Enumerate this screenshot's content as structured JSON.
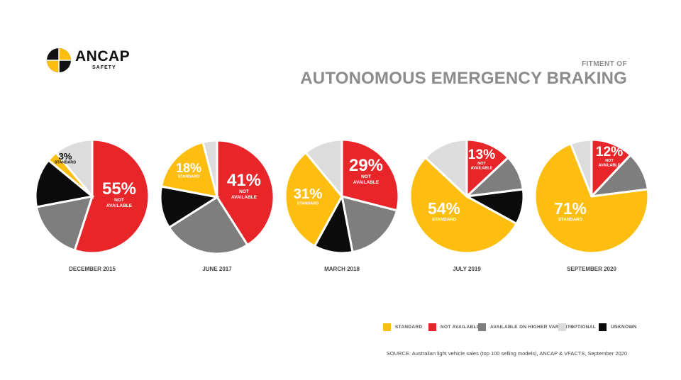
{
  "brand": {
    "name": "ANCAP",
    "sub": "SAFETY"
  },
  "header": {
    "subtitle": "FITMENT OF",
    "title": "AUTONOMOUS EMERGENCY BRAKING"
  },
  "colors": {
    "standard": "#FDBE0F",
    "not_available": "#E8262A",
    "higher_variants": "#7E7E7E",
    "optional": "#DCDCDC",
    "unknown": "#0B0B0B"
  },
  "legend": [
    {
      "key": "standard",
      "label": "STANDARD"
    },
    {
      "key": "not_available",
      "label": "NOT AVAILABLE"
    },
    {
      "key": "higher_variants",
      "label": "AVAILABLE ON HIGHER VARIANTS"
    },
    {
      "key": "optional",
      "label": "OPTIONAL"
    },
    {
      "key": "unknown",
      "label": "UNKNOWN"
    }
  ],
  "chart_data": [
    {
      "type": "pie",
      "title": "DECEMBER 2015",
      "slices": [
        {
          "key": "not_available",
          "value": 55,
          "label": "55%",
          "sublabel": "NOT AVAILABLE"
        },
        {
          "key": "higher_variants",
          "value": 17
        },
        {
          "key": "unknown",
          "value": 14
        },
        {
          "key": "standard",
          "value": 3,
          "label": "3%",
          "sublabel": "STANDARD"
        },
        {
          "key": "optional",
          "value": 11
        }
      ]
    },
    {
      "type": "pie",
      "title": "JUNE 2017",
      "slices": [
        {
          "key": "not_available",
          "value": 41,
          "label": "41%",
          "sublabel": "NOT AVAILABLE"
        },
        {
          "key": "higher_variants",
          "value": 25
        },
        {
          "key": "unknown",
          "value": 12
        },
        {
          "key": "standard",
          "value": 18,
          "label": "18%",
          "sublabel": "STANDARD"
        },
        {
          "key": "optional",
          "value": 4
        }
      ]
    },
    {
      "type": "pie",
      "title": "MARCH 2018",
      "slices": [
        {
          "key": "not_available",
          "value": 29,
          "label": "29%",
          "sublabel": "NOT AVAILABLE"
        },
        {
          "key": "higher_variants",
          "value": 18
        },
        {
          "key": "unknown",
          "value": 11
        },
        {
          "key": "standard",
          "value": 31,
          "label": "31%",
          "sublabel": "STANDARD"
        },
        {
          "key": "optional",
          "value": 11
        }
      ]
    },
    {
      "type": "pie",
      "title": "JULY 2019",
      "slices": [
        {
          "key": "not_available",
          "value": 13,
          "label": "13%",
          "sublabel": "NOT AVAILABLE"
        },
        {
          "key": "higher_variants",
          "value": 10
        },
        {
          "key": "unknown",
          "value": 10
        },
        {
          "key": "standard",
          "value": 54,
          "label": "54%",
          "sublabel": "STANDARD"
        },
        {
          "key": "optional",
          "value": 13
        }
      ]
    },
    {
      "type": "pie",
      "title": "SEPTEMBER 2020",
      "slices": [
        {
          "key": "not_available",
          "value": 12,
          "label": "12%",
          "sublabel": "NOT AVAILABLE"
        },
        {
          "key": "higher_variants",
          "value": 11
        },
        {
          "key": "standard",
          "value": 71,
          "label": "71%",
          "sublabel": "STANDARD"
        },
        {
          "key": "optional",
          "value": 6
        }
      ]
    }
  ],
  "source": "SOURCE:  Australian light vehicle sales (top 100 selling models), ANCAP & VFACTS, September 2020"
}
